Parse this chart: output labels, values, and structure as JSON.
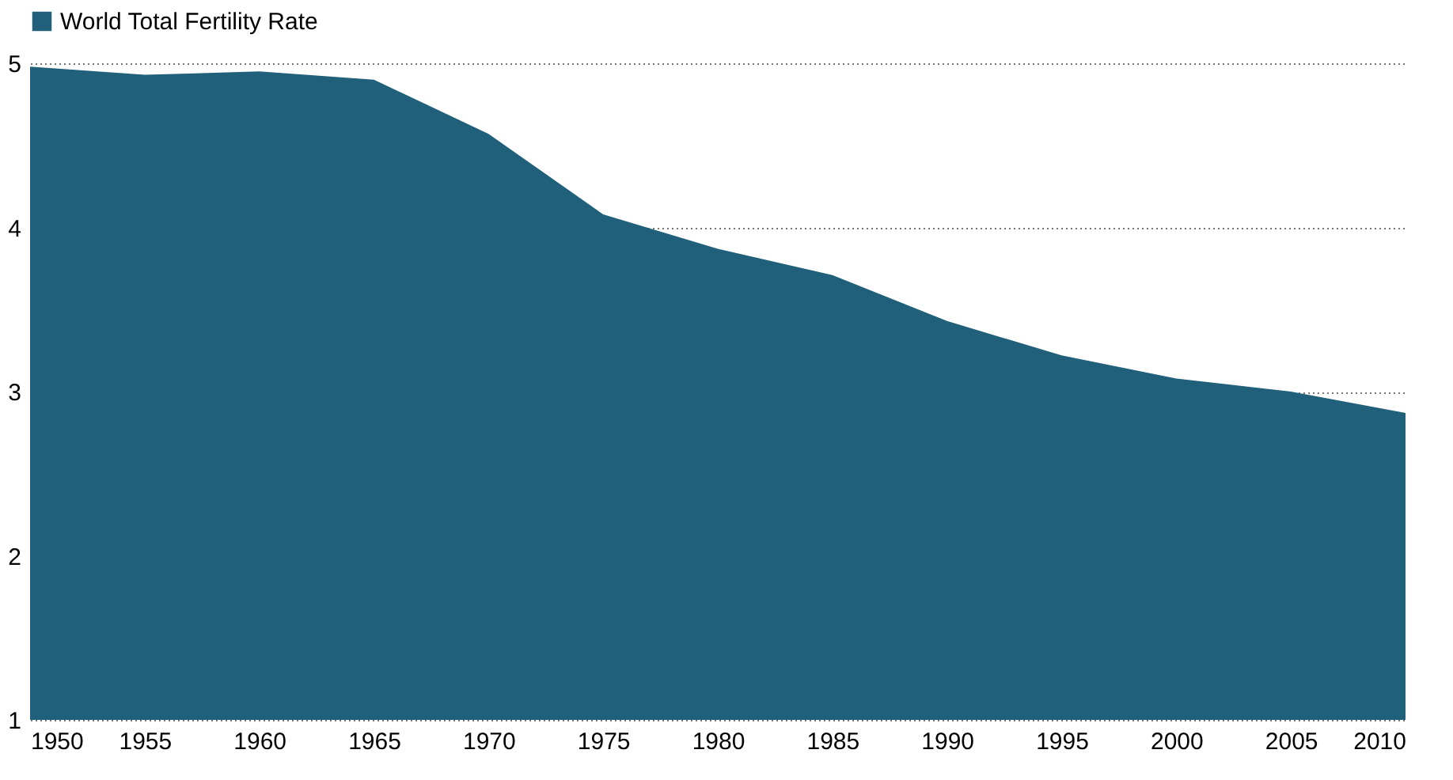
{
  "chart_data": {
    "type": "area",
    "x": [
      1950,
      1955,
      1960,
      1965,
      1970,
      1975,
      1980,
      1985,
      1990,
      1995,
      2000,
      2005,
      2010
    ],
    "series": [
      {
        "name": "World Total Fertility Rate",
        "color": "#21607a",
        "values": [
          4.98,
          4.93,
          4.95,
          4.9,
          4.57,
          4.08,
          3.87,
          3.71,
          3.43,
          3.22,
          3.08,
          3.0,
          2.87
        ]
      }
    ],
    "xlim": [
      1950,
      2010
    ],
    "xticks": [
      1950,
      1955,
      1960,
      1965,
      1970,
      1975,
      1980,
      1985,
      1990,
      1995,
      2000,
      2005,
      2010
    ],
    "ylim": [
      1,
      5
    ],
    "yticks": [
      1,
      2,
      3,
      4,
      5
    ],
    "grid": "y",
    "legend": "top"
  }
}
